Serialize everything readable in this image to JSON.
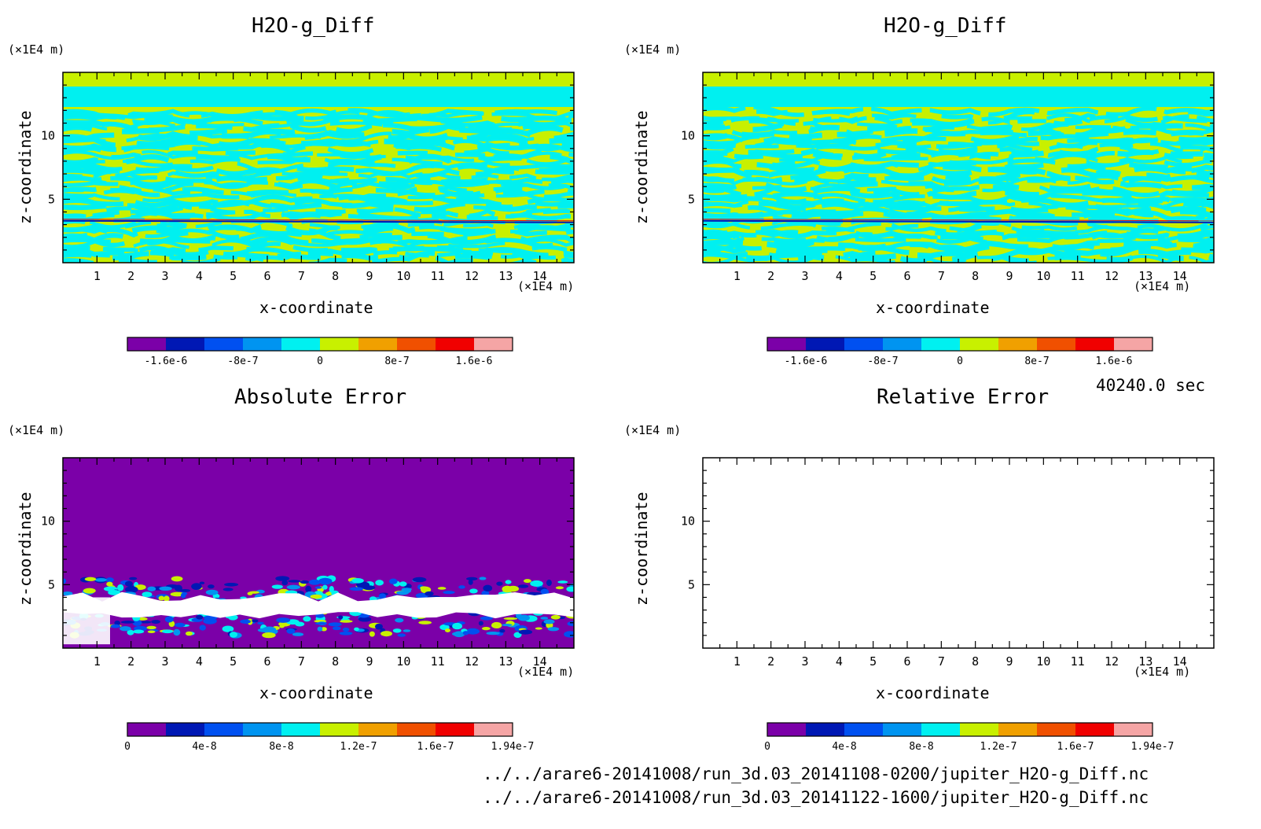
{
  "time_label": "40240.0 sec",
  "files": [
    "../../arare6-20141008/run_3d.03_20141108-0200/jupiter_H2O-g_Diff.nc",
    "../../arare6-20141008/run_3d.03_20141122-1600/jupiter_H2O-g_Diff.nc"
  ],
  "chart_data": [
    {
      "type": "heatmap",
      "title": "H2O-g_Diff",
      "xlabel": "x-coordinate",
      "ylabel": "z-coordinate",
      "x_unit": "(×1E4 m)",
      "y_unit": "(×1E4 m)",
      "xlim": [
        0,
        15
      ],
      "ylim": [
        0,
        15
      ],
      "x_ticks": [
        1,
        2,
        3,
        4,
        5,
        6,
        7,
        8,
        9,
        10,
        11,
        12,
        13,
        14
      ],
      "y_ticks": [
        5,
        10
      ],
      "pattern": "stripes",
      "colorbar": {
        "colors": [
          "#7B00A8",
          "#0018B4",
          "#0050F0",
          "#0094F0",
          "#00F0F0",
          "#C8F000",
          "#F0A000",
          "#F05000",
          "#F00000",
          "#F5A5A5"
        ],
        "tick_labels": [
          "-1.6e-6",
          "-8e-7",
          "0",
          "8e-7",
          "1.6e-6"
        ],
        "tick_positions": [
          1,
          3,
          5,
          7,
          9
        ]
      }
    },
    {
      "type": "heatmap",
      "title": "H2O-g_Diff",
      "xlabel": "x-coordinate",
      "ylabel": "z-coordinate",
      "x_unit": "(×1E4 m)",
      "y_unit": "(×1E4 m)",
      "xlim": [
        0,
        15
      ],
      "ylim": [
        0,
        15
      ],
      "x_ticks": [
        1,
        2,
        3,
        4,
        5,
        6,
        7,
        8,
        9,
        10,
        11,
        12,
        13,
        14
      ],
      "y_ticks": [
        5,
        10
      ],
      "pattern": "stripes",
      "colorbar": {
        "colors": [
          "#7B00A8",
          "#0018B4",
          "#0050F0",
          "#0094F0",
          "#00F0F0",
          "#C8F000",
          "#F0A000",
          "#F05000",
          "#F00000",
          "#F5A5A5"
        ],
        "tick_labels": [
          "-1.6e-6",
          "-8e-7",
          "0",
          "8e-7",
          "1.6e-6"
        ],
        "tick_positions": [
          1,
          3,
          5,
          7,
          9
        ]
      }
    },
    {
      "type": "heatmap",
      "title": "Absolute Error",
      "xlabel": "x-coordinate",
      "ylabel": "z-coordinate",
      "x_unit": "(×1E4 m)",
      "y_unit": "(×1E4 m)",
      "xlim": [
        0,
        15
      ],
      "ylim": [
        0,
        15
      ],
      "x_ticks": [
        1,
        2,
        3,
        4,
        5,
        6,
        7,
        8,
        9,
        10,
        11,
        12,
        13,
        14
      ],
      "y_ticks": [
        5,
        10
      ],
      "pattern": "band",
      "colorbar": {
        "colors": [
          "#7B00A8",
          "#0018B4",
          "#0050F0",
          "#0094F0",
          "#00F0F0",
          "#C8F000",
          "#F0A000",
          "#F05000",
          "#F00000",
          "#F5A5A5"
        ],
        "tick_labels": [
          "0",
          "4e-8",
          "8e-8",
          "1.2e-7",
          "1.6e-7",
          "1.94e-7"
        ],
        "tick_positions": [
          0,
          2,
          4,
          6,
          8,
          10
        ]
      }
    },
    {
      "type": "heatmap",
      "title": "Relative Error",
      "xlabel": "x-coordinate",
      "ylabel": "z-coordinate",
      "x_unit": "(×1E4 m)",
      "y_unit": "(×1E4 m)",
      "xlim": [
        0,
        15
      ],
      "ylim": [
        0,
        15
      ],
      "x_ticks": [
        1,
        2,
        3,
        4,
        5,
        6,
        7,
        8,
        9,
        10,
        11,
        12,
        13,
        14
      ],
      "y_ticks": [
        5,
        10
      ],
      "pattern": "empty",
      "colorbar": {
        "colors": [
          "#7B00A8",
          "#0018B4",
          "#0050F0",
          "#0094F0",
          "#00F0F0",
          "#C8F000",
          "#F0A000",
          "#F05000",
          "#F00000",
          "#F5A5A5"
        ],
        "tick_labels": [
          "0",
          "4e-8",
          "8e-8",
          "1.2e-7",
          "1.6e-7",
          "1.94e-7"
        ],
        "tick_positions": [
          0,
          2,
          4,
          6,
          8,
          10
        ]
      }
    }
  ]
}
